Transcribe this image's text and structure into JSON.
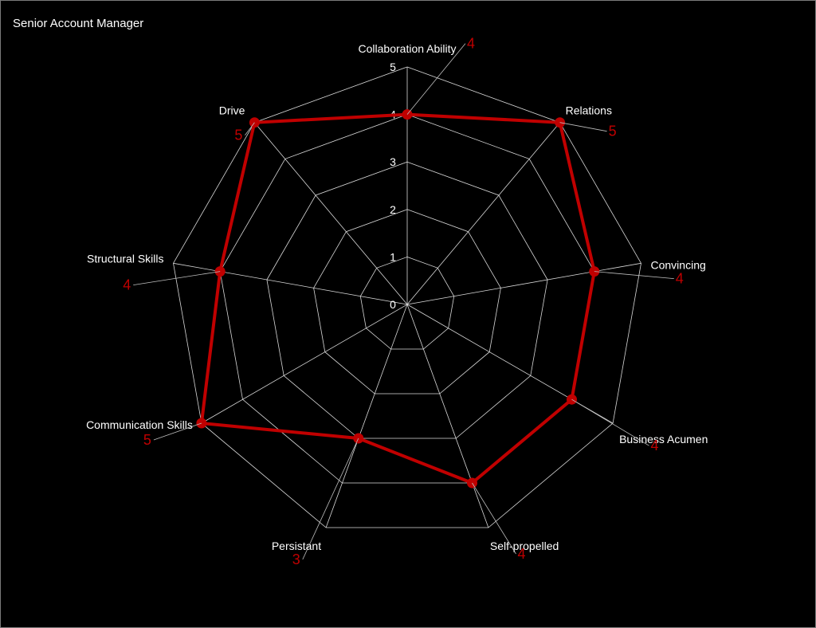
{
  "chart_data": {
    "type": "radar",
    "title": "Senior Account Manager",
    "categories": [
      "Collaboration Ability",
      "Relations",
      "Convincing",
      "Business Acumen",
      "Self-propelled",
      "Persistant",
      "Communication Skills",
      "Structural Skills",
      "Drive"
    ],
    "values": [
      4,
      5,
      4,
      4,
      4,
      3,
      5,
      4,
      5
    ],
    "rlim": [
      0,
      5
    ],
    "ticks": [
      "0",
      "1",
      "2",
      "3",
      "4",
      "5"
    ],
    "data_labels": [
      "4",
      "5",
      "4",
      "4",
      "4",
      "3",
      "5",
      "4",
      "5"
    ],
    "series_color": "#c00000",
    "grid_color": "#d9d9d9",
    "background": "#000000",
    "grid": true
  }
}
